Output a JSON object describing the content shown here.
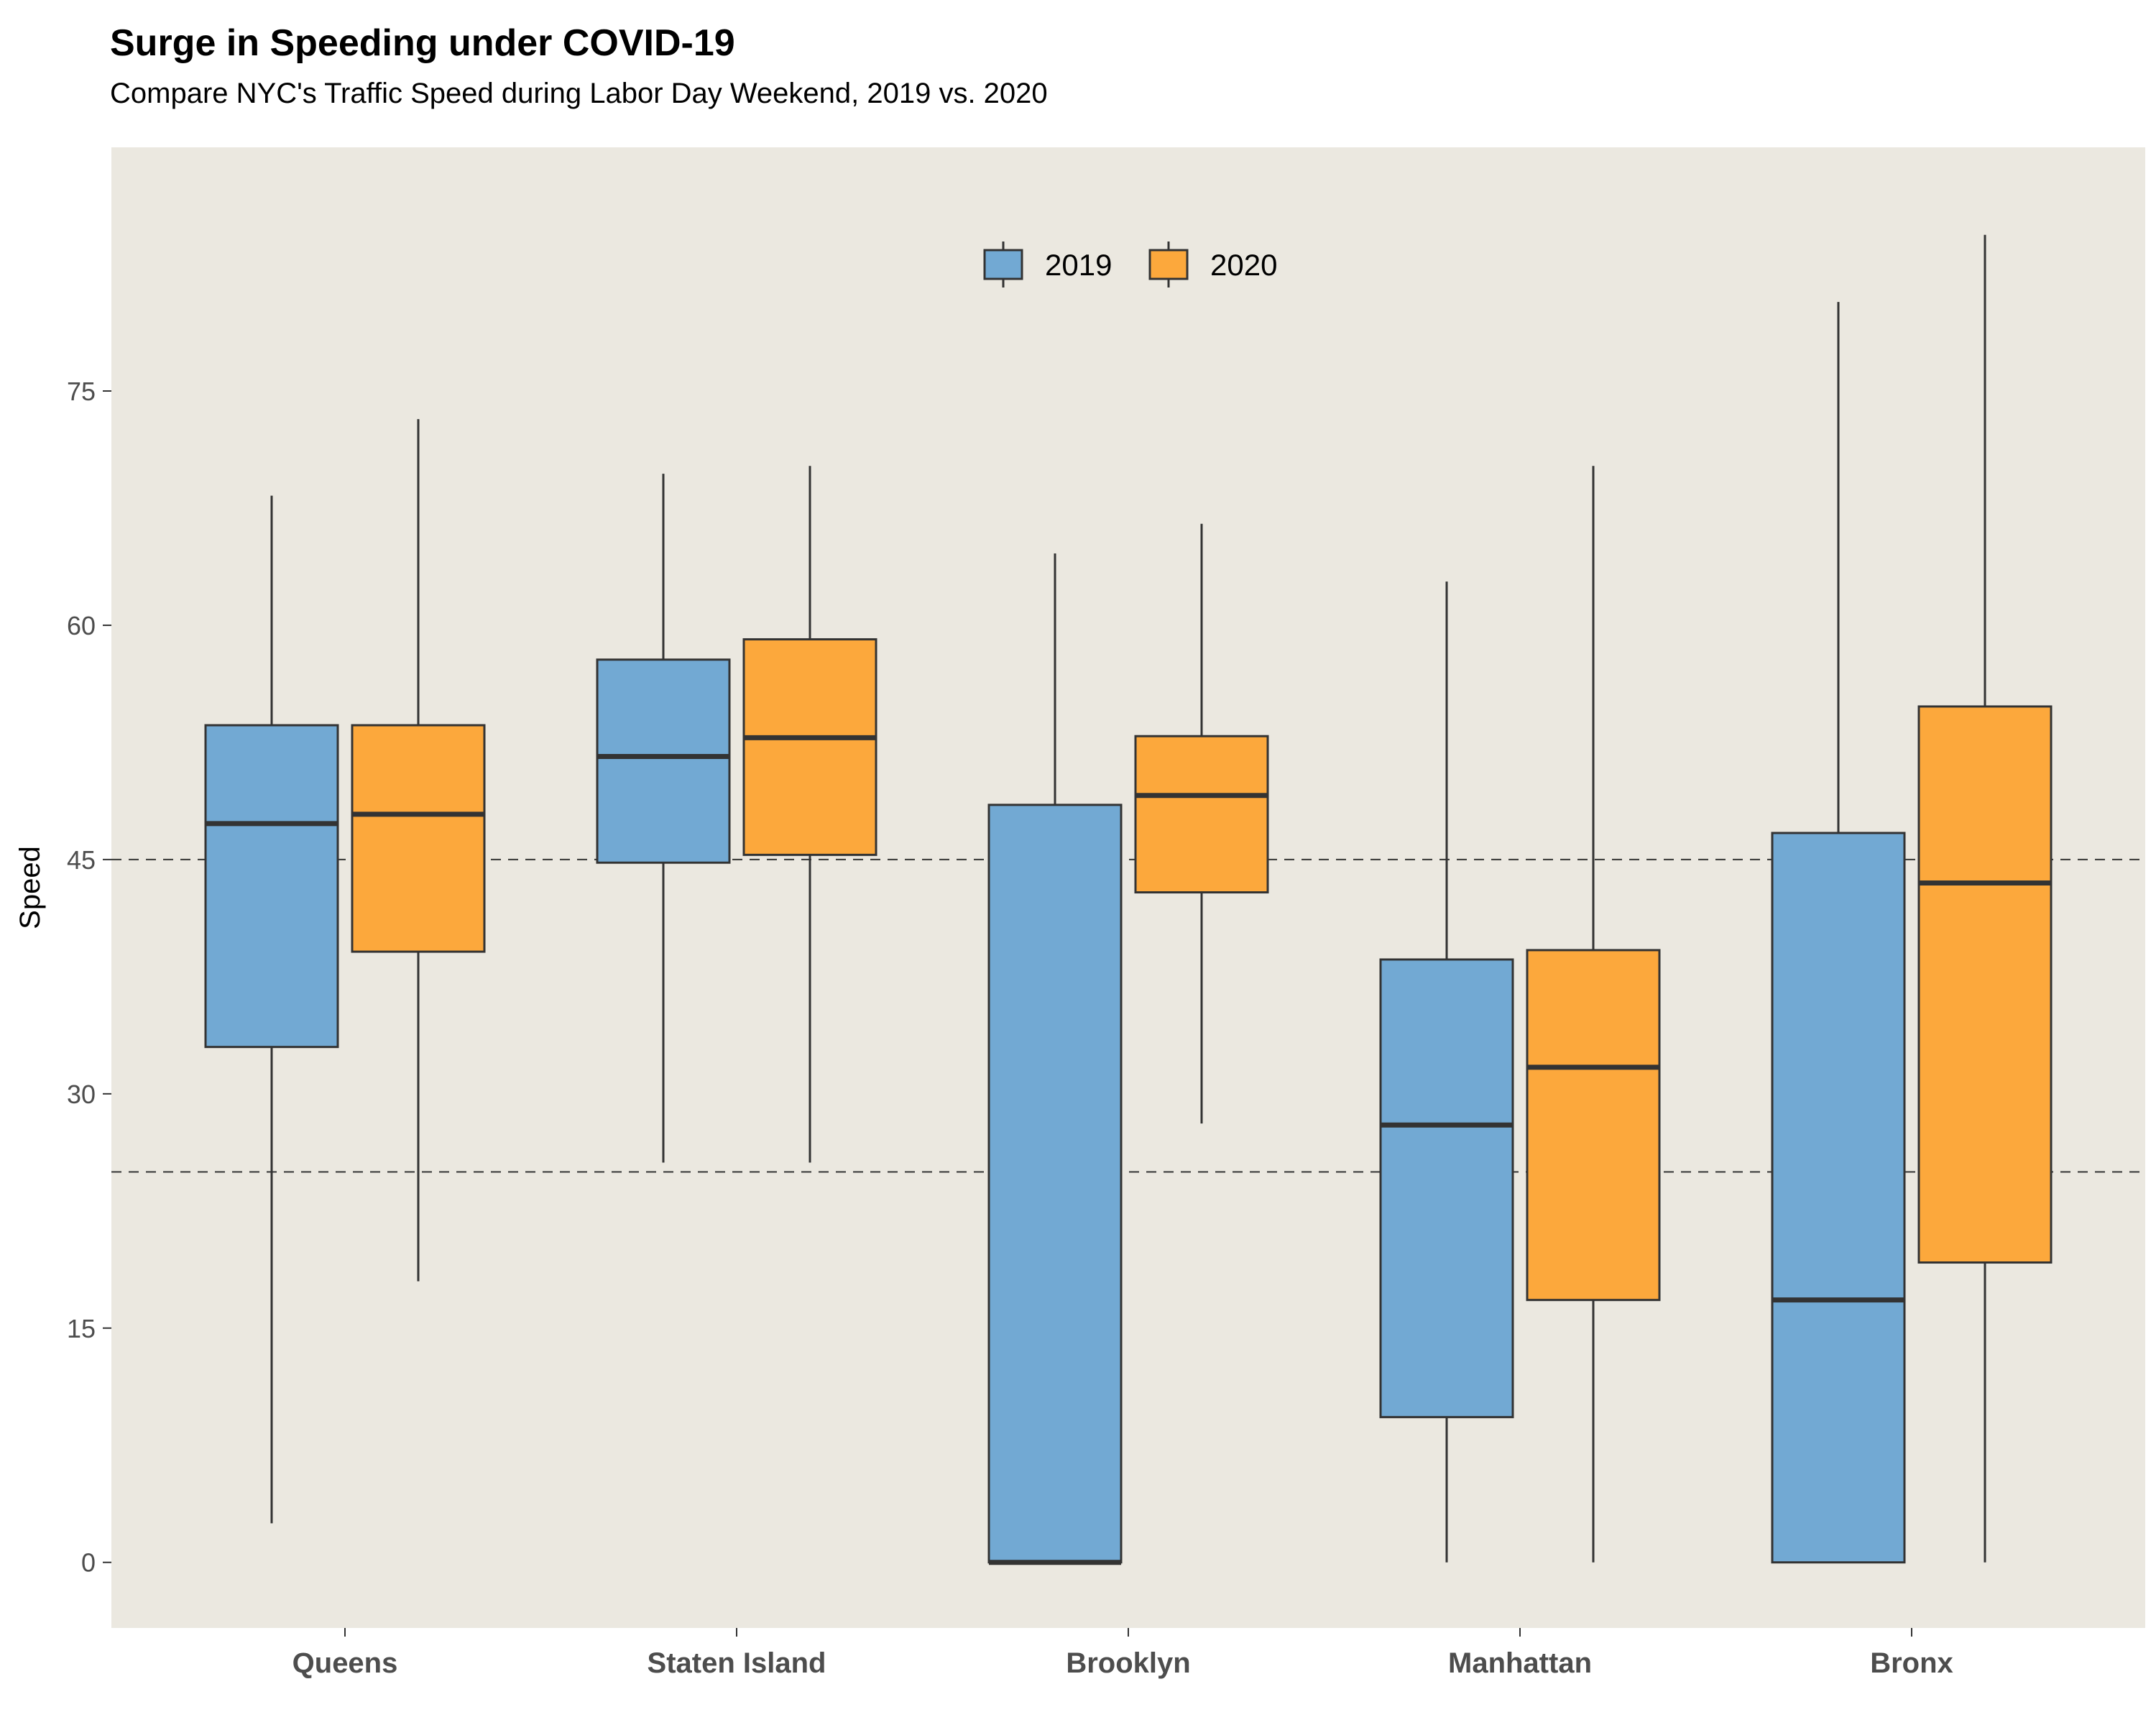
{
  "header": {
    "title": "Surge in Speeding under COVID-19",
    "subtitle": "Compare NYC's Traffic Speed during Labor Day Weekend, 2019 vs. 2020"
  },
  "colors": {
    "panel_bg": "#EBE8E0",
    "box_2019": "#72A9D3",
    "box_2020": "#FCA83C",
    "stroke": "#333333"
  },
  "chart_data": {
    "type": "boxplot",
    "title": "Surge in Speeding under COVID-19",
    "subtitle": "Compare NYC's Traffic Speed during Labor Day Weekend, 2019 vs. 2020",
    "xlabel": "",
    "ylabel": "Speed",
    "ylim": [
      -4.2,
      90.6
    ],
    "yticks": [
      0,
      15,
      30,
      45,
      60,
      75
    ],
    "grid": false,
    "reference_lines": [
      45,
      25
    ],
    "legend": {
      "position": "top-center",
      "entries": [
        "2019",
        "2020"
      ]
    },
    "categories": [
      "Queens",
      "Staten Island",
      "Brooklyn",
      "Manhattan",
      "Bronx"
    ],
    "series": [
      {
        "name": "2019",
        "boxes": [
          {
            "min": 2.5,
            "q1": 33.0,
            "median": 47.3,
            "q3": 53.6,
            "max": 68.3
          },
          {
            "min": 25.6,
            "q1": 44.8,
            "median": 51.6,
            "q3": 57.8,
            "max": 69.7
          },
          {
            "min": 0.0,
            "q1": 0.0,
            "median": 0.0,
            "q3": 48.5,
            "max": 64.6
          },
          {
            "min": 0.0,
            "q1": 9.3,
            "median": 28.0,
            "q3": 38.6,
            "max": 62.8
          },
          {
            "min": 0.0,
            "q1": 0.0,
            "median": 16.8,
            "q3": 46.7,
            "max": 80.7
          }
        ]
      },
      {
        "name": "2020",
        "boxes": [
          {
            "min": 18.0,
            "q1": 39.1,
            "median": 47.9,
            "q3": 53.6,
            "max": 73.2
          },
          {
            "min": 25.6,
            "q1": 45.3,
            "median": 52.8,
            "q3": 59.1,
            "max": 70.2
          },
          {
            "min": 28.1,
            "q1": 42.9,
            "median": 49.1,
            "q3": 52.9,
            "max": 66.5
          },
          {
            "min": 0.0,
            "q1": 16.8,
            "median": 31.7,
            "q3": 39.2,
            "max": 70.2
          },
          {
            "min": 0.0,
            "q1": 19.2,
            "median": 43.5,
            "q3": 54.8,
            "max": 85.0
          }
        ]
      }
    ]
  }
}
